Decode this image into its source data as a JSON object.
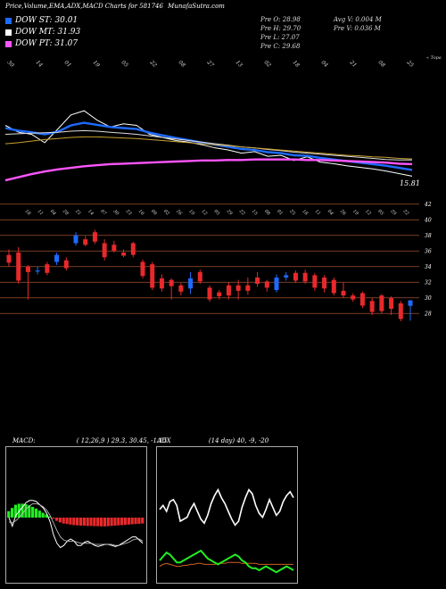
{
  "header": {
    "title": "Price,Volume,EMA,ADX,MACD Charts for 581746",
    "site": "MunafaSutra.com"
  },
  "legend": [
    {
      "label": "DOW ST: 30.01",
      "color": "#1e6bff"
    },
    {
      "label": "DOW MT: 31.93",
      "color": "#ffffff"
    },
    {
      "label": "DOW PT: 31.07",
      "color": "#ff55ff"
    }
  ],
  "stats": {
    "pre_o": "Pre  O: 28.98",
    "pre_h": "Pre  H: 29.70",
    "pre_l": "Pre  L: 27.07",
    "pre_c": "Pre  C: 29.68",
    "avg_v": "Avg V: 0.004  M",
    "pre_v": "Pre  V: 0.036  M"
  },
  "chart_data": [
    {
      "type": "line",
      "name": "price-ema",
      "top_dates": [
        "30",
        "14",
        "01",
        "19",
        "05",
        "22",
        "08",
        "27",
        "13",
        "02",
        "18",
        "04",
        "21",
        "08",
        "25"
      ],
      "right_label": "« Topa",
      "value_label": "15.81",
      "series": [
        {
          "color": "#ffffff",
          "values": [
            38.5,
            37.2,
            36.8,
            35.2,
            37.8,
            40.5,
            41.3,
            39.5,
            38.2,
            38.8,
            38.5,
            36.8,
            36.2,
            35.6,
            35.3,
            34.8,
            34.2,
            33.8,
            33.2,
            33.5,
            32.6,
            32.8,
            31.8,
            32.5,
            31.5,
            31.2,
            30.8,
            30.5,
            30.2,
            29.8,
            29.3,
            28.8
          ]
        },
        {
          "color": "#1e6bff",
          "values": [
            38.0,
            37.5,
            37.2,
            36.8,
            37.3,
            38.5,
            39.0,
            38.6,
            38.2,
            38.0,
            37.8,
            37.1,
            36.6,
            36.1,
            35.7,
            35.2,
            34.8,
            34.4,
            34.0,
            33.8,
            33.4,
            33.2,
            32.8,
            32.7,
            32.3,
            32.0,
            31.7,
            31.4,
            31.1,
            30.8,
            30.4,
            30.0
          ]
        },
        {
          "color": "#dddddd",
          "values": [
            36.8,
            36.9,
            37.0,
            37.1,
            37.2,
            37.4,
            37.5,
            37.4,
            37.2,
            37.0,
            36.8,
            36.5,
            36.2,
            35.9,
            35.6,
            35.3,
            35.0,
            34.7,
            34.4,
            34.2,
            33.9,
            33.7,
            33.4,
            33.2,
            33.0,
            32.8,
            32.6,
            32.4,
            32.2,
            32.0,
            31.9,
            31.9
          ]
        },
        {
          "color": "#c8a030",
          "values": [
            35.0,
            35.2,
            35.5,
            35.8,
            36.0,
            36.2,
            36.3,
            36.3,
            36.2,
            36.1,
            36.0,
            35.8,
            35.6,
            35.4,
            35.2,
            35.0,
            34.8,
            34.6,
            34.4,
            34.2,
            34.0,
            33.8,
            33.6,
            33.4,
            33.2,
            33.0,
            32.8,
            32.7,
            32.5,
            32.4,
            32.2,
            32.1
          ]
        },
        {
          "color": "#ff55ff",
          "values": [
            28.0,
            28.6,
            29.2,
            29.7,
            30.1,
            30.4,
            30.7,
            30.9,
            31.1,
            31.2,
            31.3,
            31.4,
            31.5,
            31.6,
            31.7,
            31.8,
            31.8,
            31.9,
            31.9,
            32.0,
            32.0,
            32.0,
            32.0,
            31.9,
            31.9,
            31.8,
            31.7,
            31.6,
            31.5,
            31.4,
            31.2,
            31.1
          ]
        }
      ]
    },
    {
      "type": "candlestick",
      "name": "price-candles",
      "dates": [
        "18",
        "11",
        "04",
        "28",
        "21",
        "14",
        "07",
        "30",
        "23",
        "16",
        "09",
        "02",
        "26",
        "19",
        "12",
        "05",
        "29",
        "22",
        "15",
        "08",
        "01",
        "25",
        "18",
        "11",
        "04",
        "26",
        "19",
        "12",
        "05",
        "29",
        "22"
      ],
      "yticks": [
        28,
        30,
        32,
        34,
        36,
        38,
        40,
        42
      ],
      "ylim": [
        27,
        43
      ],
      "candles": [
        {
          "o": 35.5,
          "c": 34.5,
          "h": 36.2,
          "l": 34.0
        },
        {
          "o": 35.8,
          "c": 32.2,
          "h": 36.5,
          "l": 31.8
        },
        {
          "o": 34.0,
          "c": 33.3,
          "h": 34.2,
          "l": 29.8
        },
        {
          "o": 33.5,
          "c": 33.5,
          "h": 34.0,
          "l": 33.0
        },
        {
          "o": 34.3,
          "c": 33.2,
          "h": 34.6,
          "l": 32.9
        },
        {
          "o": 34.6,
          "c": 35.5,
          "h": 35.8,
          "l": 34.2
        },
        {
          "o": 34.8,
          "c": 33.8,
          "h": 35.2,
          "l": 33.5
        },
        {
          "o": 37.0,
          "c": 38.0,
          "h": 38.4,
          "l": 36.7
        },
        {
          "o": 37.5,
          "c": 36.8,
          "h": 37.9,
          "l": 36.6
        },
        {
          "o": 38.4,
          "c": 37.2,
          "h": 38.7,
          "l": 36.9
        },
        {
          "o": 37.0,
          "c": 35.2,
          "h": 37.5,
          "l": 34.8
        },
        {
          "o": 36.8,
          "c": 36.0,
          "h": 37.3,
          "l": 35.8
        },
        {
          "o": 35.8,
          "c": 35.4,
          "h": 36.2,
          "l": 35.2
        },
        {
          "o": 37.0,
          "c": 35.5,
          "h": 37.2,
          "l": 35.2
        },
        {
          "o": 34.6,
          "c": 32.8,
          "h": 34.9,
          "l": 32.5
        },
        {
          "o": 34.3,
          "c": 31.3,
          "h": 34.6,
          "l": 31.0
        },
        {
          "o": 32.5,
          "c": 31.2,
          "h": 33.0,
          "l": 30.8
        },
        {
          "o": 32.3,
          "c": 31.5,
          "h": 32.5,
          "l": 29.8
        },
        {
          "o": 31.6,
          "c": 30.8,
          "h": 31.9,
          "l": 30.3
        },
        {
          "o": 31.2,
          "c": 32.5,
          "h": 33.3,
          "l": 30.5
        },
        {
          "o": 33.3,
          "c": 32.1,
          "h": 33.6,
          "l": 31.8
        },
        {
          "o": 31.3,
          "c": 29.8,
          "h": 31.6,
          "l": 29.5
        },
        {
          "o": 30.7,
          "c": 30.2,
          "h": 31.0,
          "l": 29.8
        },
        {
          "o": 31.6,
          "c": 30.3,
          "h": 32.0,
          "l": 29.8
        },
        {
          "o": 31.6,
          "c": 30.9,
          "h": 32.3,
          "l": 29.8
        },
        {
          "o": 31.6,
          "c": 30.9,
          "h": 32.6,
          "l": 30.4
        },
        {
          "o": 32.6,
          "c": 31.8,
          "h": 33.3,
          "l": 31.4
        },
        {
          "o": 32.1,
          "c": 31.3,
          "h": 32.3,
          "l": 30.8
        },
        {
          "o": 31.0,
          "c": 32.6,
          "h": 33.0,
          "l": 30.7
        },
        {
          "o": 32.6,
          "c": 32.9,
          "h": 33.3,
          "l": 32.2
        },
        {
          "o": 33.2,
          "c": 32.2,
          "h": 33.5,
          "l": 31.9
        },
        {
          "o": 33.2,
          "c": 32.1,
          "h": 33.6,
          "l": 31.8
        },
        {
          "o": 32.9,
          "c": 31.3,
          "h": 33.2,
          "l": 30.9
        },
        {
          "o": 32.6,
          "c": 31.2,
          "h": 32.9,
          "l": 30.7
        },
        {
          "o": 32.3,
          "c": 30.6,
          "h": 32.6,
          "l": 30.3
        },
        {
          "o": 30.9,
          "c": 30.3,
          "h": 32.0,
          "l": 30.0
        },
        {
          "o": 30.3,
          "c": 29.8,
          "h": 30.6,
          "l": 29.5
        },
        {
          "o": 30.6,
          "c": 29.0,
          "h": 30.8,
          "l": 28.7
        },
        {
          "o": 29.6,
          "c": 28.2,
          "h": 30.0,
          "l": 27.8
        },
        {
          "o": 30.3,
          "c": 28.3,
          "h": 30.5,
          "l": 28.0
        },
        {
          "o": 30.0,
          "c": 28.6,
          "h": 30.2,
          "l": 27.8
        },
        {
          "o": 29.3,
          "c": 27.3,
          "h": 29.6,
          "l": 27.0
        },
        {
          "o": 28.98,
          "c": 29.68,
          "h": 29.7,
          "l": 27.07
        }
      ]
    },
    {
      "type": "line",
      "name": "macd",
      "title": "MACD:",
      "params": "( 12,26,9 ) 29.3,  30.45,  -1.15",
      "hist": [
        0.6,
        0.9,
        1.2,
        1.3,
        1.3,
        1.25,
        1.15,
        1.0,
        0.85,
        0.65,
        0.45,
        0.3,
        0.1,
        -0.1,
        -0.3,
        -0.45,
        -0.55,
        -0.6,
        -0.65,
        -0.7,
        -0.72,
        -0.75,
        -0.75,
        -0.78,
        -0.78,
        -0.8,
        -0.8,
        -0.82,
        -0.82,
        -0.8,
        -0.78,
        -0.75,
        -0.72,
        -0.7,
        -0.68,
        -0.65,
        -0.62,
        -0.6,
        -0.58,
        -0.55
      ],
      "macd": [
        0.0,
        -0.8,
        0.2,
        0.6,
        1.0,
        1.4,
        1.6,
        1.6,
        1.5,
        1.2,
        0.9,
        0.4,
        -0.4,
        -1.6,
        -2.4,
        -2.8,
        -2.6,
        -2.2,
        -2.0,
        -2.2,
        -2.6,
        -2.6,
        -2.3,
        -2.2,
        -2.4,
        -2.6,
        -2.7,
        -2.6,
        -2.5,
        -2.5,
        -2.6,
        -2.7,
        -2.6,
        -2.4,
        -2.2,
        -2.0,
        -1.8,
        -1.8,
        -2.1,
        -2.4
      ],
      "signal": [
        -0.4,
        -0.5,
        -0.3,
        0.0,
        0.4,
        0.8,
        1.1,
        1.3,
        1.3,
        1.2,
        1.0,
        0.7,
        0.2,
        -0.5,
        -1.2,
        -1.8,
        -2.1,
        -2.2,
        -2.2,
        -2.2,
        -2.3,
        -2.4,
        -2.4,
        -2.4,
        -2.4,
        -2.5,
        -2.5,
        -2.5,
        -2.5,
        -2.5,
        -2.5,
        -2.6,
        -2.6,
        -2.5,
        -2.4,
        -2.3,
        -2.1,
        -2.0,
        -2.0,
        -2.2
      ]
    },
    {
      "type": "line",
      "name": "adx",
      "title": "ADX",
      "params": "(14  day) 40,  -9,  -20",
      "plus_di": [
        72,
        76,
        70,
        80,
        82,
        76,
        60,
        62,
        64,
        72,
        78,
        70,
        62,
        58,
        66,
        78,
        86,
        92,
        84,
        78,
        70,
        62,
        56,
        60,
        74,
        84,
        92,
        88,
        76,
        68,
        64,
        72,
        82,
        74,
        66,
        70,
        80,
        86,
        90,
        84
      ],
      "minus_di": [
        20,
        24,
        28,
        26,
        22,
        18,
        18,
        20,
        22,
        24,
        26,
        28,
        30,
        26,
        22,
        20,
        18,
        16,
        18,
        20,
        22,
        24,
        26,
        24,
        20,
        18,
        14,
        12,
        12,
        10,
        12,
        14,
        12,
        10,
        8,
        10,
        12,
        14,
        12,
        10
      ],
      "adx": [
        14,
        16,
        17,
        16,
        15,
        14,
        14,
        15,
        15,
        16,
        16,
        17,
        17,
        16,
        16,
        16,
        16,
        17,
        17,
        17,
        18,
        18,
        18,
        18,
        17,
        17,
        17,
        17,
        17,
        16,
        16,
        16,
        16,
        16,
        16,
        16,
        16,
        16,
        16,
        16
      ]
    }
  ]
}
